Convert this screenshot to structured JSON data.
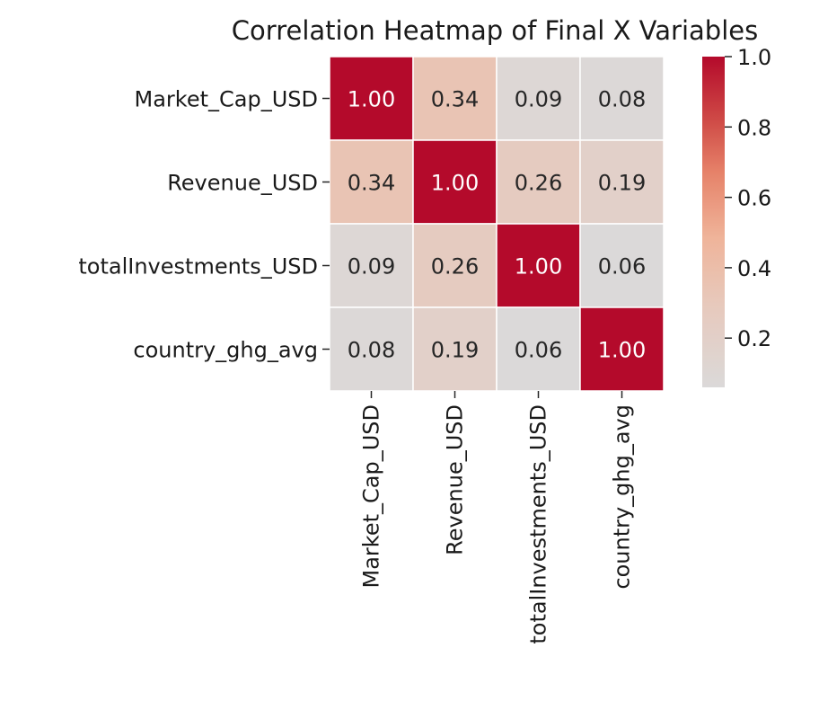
{
  "chart_data": {
    "type": "heatmap",
    "title": "Correlation Heatmap of Final X Variables",
    "rows": [
      "Market_Cap_USD",
      "Revenue_USD",
      "totalInvestments_USD",
      "country_ghg_avg"
    ],
    "columns": [
      "Market_Cap_USD",
      "Revenue_USD",
      "totalInvestments_USD",
      "country_ghg_avg"
    ],
    "values": [
      [
        1.0,
        0.34,
        0.09,
        0.08
      ],
      [
        0.34,
        1.0,
        0.26,
        0.19
      ],
      [
        0.09,
        0.26,
        1.0,
        0.06
      ],
      [
        0.08,
        0.19,
        0.06,
        1.0
      ]
    ],
    "value_format": "0.00",
    "colorbar": {
      "ticks": [
        "0.2",
        "0.4",
        "0.6",
        "0.8",
        "1.0"
      ],
      "range": [
        0.06,
        1.0
      ],
      "colormap": "coolwarm-upper-half",
      "low_color": "#dbd9d9",
      "mid_color": "#efbba2",
      "high_color": "#b40a2b"
    },
    "cell_text_colors": {
      "dark_bg": "#ffffff",
      "light_bg": "#262626"
    }
  }
}
